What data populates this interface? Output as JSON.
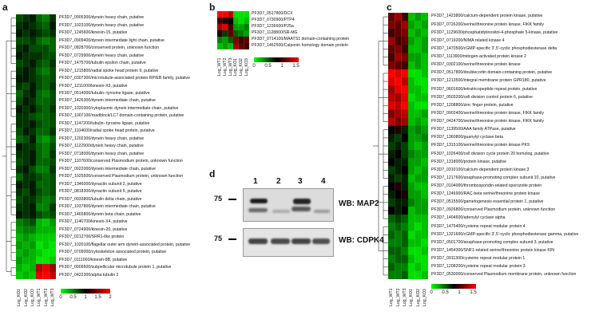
{
  "panels": {
    "a": {
      "letter": "a",
      "columns": [
        "Log_KO1",
        "Log_KO2",
        "Log_KO3",
        "Log_WT1",
        "Log_WT2",
        "Log_WT3"
      ],
      "rows": [
        "PF3D7_0905300/dynein heavy chain, putative",
        "PF3D7_1023100/dynein heavy chain, putative",
        "PF3D7_1245600/kinesin-15, putative",
        "PF3D7_0909400/dynein intermediate light chain, putative",
        "PF3D7_0828700/conserved protein, unknown function",
        "PF3D7_0729900/dynein heavy chain, putative",
        "PF3D7_1475700/tubulin epsilon chain, putative",
        "PF3D7_1215800/radial spoke head protein 9, putative",
        "PF3D7_0307300/microtubule-associated protein RP/EB family, putative",
        "PF3D7_1211000/kinesin-X3, putative",
        "PF3D7_0514000/tubulin--tyrosine ligase, putative",
        "PF3D7_1426300/dynein intermediate chain, putative",
        "PF3D7_1020300/cytoplasmic dynein intermediate chain, putative",
        "PF3D7_1007100/roadblock/LC7 domain-containing protein, putative",
        "PF3D7_1147200/tubulin--tyrosine ligase, putative",
        "PF3D7_1104600/radial spoke head protein, putative",
        "PF3D7_1202300/dynein heavy chain, putative",
        "PF3D7_1122900/dynein heavy chain, putative",
        "PF3D7_0718000/dynein heavy chain, putative",
        "PF3D7_1107600/conserved Plasmodium protein, unknown function",
        "PF3D7_0922000/dynein intermediate chain, putative",
        "PF3D7_1025500/conserved Plasmodium protein, unknown function",
        "PF3D7_1346000/dynactin subunit 2, putative",
        "PF3D7_0818300/dynactin subunit 6, putative",
        "PF3D7_0933800/tubulin delta chain, putative",
        "PF3D7_1037800/dynein intermediate chain, putative",
        "PF3D7_1465800/dynein beta chain, putative",
        "PF3D7_1146700/kinesin-X4, putative",
        "PF3D7_0724900/kinesin-20, putative",
        "PF3D7_0212700/SRR1-like protein",
        "PF3D7_1020100/flagellar outer arm dynein-associated protein, putative",
        "PF3D7_0709000/cytoskeleton associated protein, putative",
        "PF3D7_0111000/kinesin-8B, putative",
        "PF3D7_0909500/subpellicular microtubule protein 1, putative",
        "PF3D7_0422300/alpha tubulin 2"
      ],
      "values": [
        [
          0.7,
          0.8,
          0.9,
          0.6,
          0.5,
          0.8
        ],
        [
          0.8,
          0.9,
          0.8,
          0.7,
          0.6,
          0.9
        ],
        [
          0.9,
          0.8,
          0.9,
          0.8,
          0.7,
          0.8
        ],
        [
          0.7,
          0.7,
          0.8,
          0.6,
          0.5,
          0.6
        ],
        [
          0.8,
          0.9,
          0.7,
          0.7,
          0.7,
          0.6
        ],
        [
          0.9,
          0.8,
          0.8,
          0.8,
          0.7,
          0.7
        ],
        [
          0.7,
          0.8,
          0.9,
          0.7,
          0.6,
          0.8
        ],
        [
          0.8,
          0.9,
          0.8,
          0.6,
          0.5,
          0.7
        ],
        [
          0.9,
          0.9,
          0.8,
          0.7,
          0.6,
          0.7
        ],
        [
          0.8,
          0.7,
          0.9,
          0.7,
          0.6,
          0.8
        ],
        [
          0.6,
          0.8,
          0.9,
          0.6,
          0.5,
          0.7
        ],
        [
          0.7,
          0.9,
          0.8,
          0.6,
          0.6,
          0.7
        ],
        [
          0.9,
          0.8,
          0.9,
          0.7,
          0.6,
          0.8
        ],
        [
          0.8,
          0.8,
          0.7,
          0.6,
          0.6,
          0.7
        ],
        [
          0.8,
          0.8,
          0.9,
          0.7,
          0.6,
          0.7
        ],
        [
          0.7,
          0.9,
          0.8,
          0.6,
          0.6,
          0.8
        ],
        [
          0.6,
          0.7,
          0.9,
          0.5,
          0.4,
          0.6
        ],
        [
          0.9,
          0.8,
          0.8,
          0.6,
          0.5,
          0.7
        ],
        [
          0.8,
          0.8,
          0.9,
          0.6,
          0.5,
          0.8
        ],
        [
          0.7,
          0.8,
          0.9,
          0.6,
          0.6,
          0.7
        ],
        [
          0.8,
          0.9,
          0.7,
          0.5,
          0.5,
          0.8
        ],
        [
          0.6,
          0.8,
          0.8,
          0.7,
          0.6,
          0.7
        ],
        [
          0.9,
          0.8,
          0.9,
          0.6,
          0.6,
          0.7
        ],
        [
          0.8,
          0.7,
          0.9,
          0.7,
          0.6,
          0.7
        ],
        [
          0.7,
          0.8,
          0.8,
          0.6,
          0.5,
          0.6
        ],
        [
          0.8,
          0.8,
          0.9,
          0.5,
          0.5,
          0.8
        ],
        [
          0.9,
          0.8,
          0.9,
          0.7,
          0.6,
          0.7
        ],
        [
          0.5,
          0.6,
          0.7,
          0.3,
          0.2,
          0.4
        ],
        [
          0.4,
          0.5,
          0.5,
          0.3,
          0.3,
          0.3
        ],
        [
          0.3,
          0.4,
          0.3,
          0.2,
          0.2,
          0.2
        ],
        [
          0.4,
          0.3,
          0.4,
          0.1,
          0.2,
          0.1
        ],
        [
          0.3,
          0.4,
          0.3,
          0.2,
          0.1,
          0.1
        ],
        [
          0.4,
          0.3,
          0.3,
          0.1,
          0.1,
          0.2
        ],
        [
          0.3,
          0.2,
          0.3,
          1.7,
          1.9,
          1.6
        ],
        [
          0.2,
          0.3,
          0.2,
          1.9,
          2.0,
          1.8
        ]
      ],
      "legend_ticks": [
        "0",
        "0.5",
        "1",
        "1.5",
        "2"
      ],
      "legend_range": [
        0,
        2
      ]
    },
    "b": {
      "letter": "b",
      "columns": [
        "Log_WT1",
        "Log_WT2",
        "Log_WT3",
        "Log_KO1",
        "Log_KO2",
        "Log_KO3"
      ],
      "rows": [
        "PF3D7_0517800/DCX",
        "PF3D7_0730900/PTP4",
        "PF3D7_1236600/P25a",
        "PF3D7_1128800/SR-MG",
        "PF3D7_0714100/MAATS1 domain-containing protein",
        "PF3D7_1462500/Calponin homology domain protein"
      ],
      "values": [
        [
          1.9,
          1.6,
          1.4,
          0.1,
          0.1,
          0.1
        ],
        [
          1.0,
          0.9,
          0.8,
          0.2,
          0.1,
          0.2
        ],
        [
          1.3,
          1.5,
          1.0,
          0.3,
          0.3,
          0.4
        ],
        [
          0.9,
          0.6,
          1.1,
          0.5,
          0.4,
          0.3
        ],
        [
          0.4,
          0.3,
          0.5,
          1.2,
          1.0,
          1.1
        ],
        [
          0.2,
          0.3,
          0.2,
          1.3,
          1.1,
          1.0
        ]
      ],
      "legend_ticks": [
        "0",
        "0.5",
        "1",
        "1.5"
      ],
      "legend_range": [
        0,
        1.6
      ]
    },
    "c": {
      "letter": "c",
      "columns": [
        "Log_WT1",
        "Log_WT2",
        "Log_WT3",
        "Log_KO1",
        "Log_KO2",
        "Log_KO3"
      ],
      "rows": [
        "PF3D7_1423800/calcium-dependent protein kinase, putative",
        "PF3D7_0726200/serine/threonine protein kinase, FIKK family",
        "PF3D7_1129600/phosphatidylinositol-4-phosphate 5-kinase, putative",
        "PF3D7_0719200/NIMA related kinase 4",
        "PF3D7_1470500/cGMP-specific 3',5'-cyclic phosphodiesterase delta",
        "PF3D7_1113900/mitogen-activated protein kinase 2",
        "PF3D7_0302100/serine/threonine protein kinase",
        "PF3D7_0517800/doublecortin domain-containing protein, putative",
        "PF3D7_1213500/integral membrane protein GPR180, putative",
        "PF3D7_0601600/tetratricopeptide repeat protein, putative",
        "PF3D7_0503200/cell division control protein 6, putative",
        "PF3D7_1208800/zinc finger protein, putative",
        "PF3D7_0902400/serine/threonine protein kinase, FIKK family",
        "PF3D7_0424700/serine/threonine protein kinase, FIKK family",
        "PF3D7_1139500/AAA family ATPase, putative",
        "PF3D7_1360800/guanylyl cyclase beta",
        "PF3D7_1315100/serine/threonine protein kinase PK9",
        "PF3D7_1026400/cell division cycle protein 20 homolog, putative",
        "PF3D7_1318000/protein kinase, putative",
        "PF3D7_0310100/calcium-dependent protein kinase 3",
        "PF3D7_1217600/anaphase-promoting complex subunit 10, putative",
        "PF3D7_0104000/thrombospondin-related sporozoite protein",
        "PF3D7_1246900/RAC-beta serine/threonine protein kinase",
        "PF3D7_0515500/gametogenesis essential protein 1, putative",
        "PF3D7_0926800/conserved Plasmodium protein, unknown function",
        "PF3D7_1404600/adenylyl cyclase alpha",
        "PF3D7_1475400/cysteine repeat modular protein 4",
        "PF3D7_1321600/cGMP-specific 3',5'-cyclic phosphodiesterase gamma, putative",
        "PF3D7_0501700/anaphase-promoting complex subunit 3, putative",
        "PF3D7_1454300/SNF1-related serine/threonine protein kinase KIN",
        "PF3D7_0911300/cysteine repeat modular protein 1",
        "PF3D7_1208200/cysteine repeat modular protein 3",
        "PF3D7_0530000/conserved Plasmodium membrane protein, unknown function"
      ],
      "values": [
        [
          1.1,
          1.3,
          1.0,
          0.2,
          0.3,
          0.2
        ],
        [
          1.2,
          1.1,
          1.3,
          0.3,
          0.2,
          0.3
        ],
        [
          1.0,
          1.1,
          1.2,
          0.2,
          0.3,
          0.2
        ],
        [
          1.3,
          1.0,
          1.1,
          0.3,
          0.2,
          0.3
        ],
        [
          1.1,
          1.2,
          1.0,
          0.2,
          0.2,
          0.3
        ],
        [
          1.0,
          1.3,
          1.2,
          0.3,
          0.3,
          0.2
        ],
        [
          1.2,
          1.1,
          1.0,
          0.2,
          0.3,
          0.2
        ],
        [
          1.6,
          1.5,
          1.7,
          0.1,
          0.1,
          0.2
        ],
        [
          1.5,
          1.6,
          1.4,
          0.2,
          0.1,
          0.1
        ],
        [
          1.3,
          1.5,
          1.6,
          0.2,
          0.2,
          0.1
        ],
        [
          1.4,
          1.3,
          1.5,
          0.1,
          0.2,
          0.2
        ],
        [
          1.5,
          1.4,
          1.6,
          0.2,
          0.1,
          0.1
        ],
        [
          1.2,
          1.3,
          1.4,
          0.2,
          0.2,
          0.3
        ],
        [
          1.4,
          1.2,
          1.3,
          0.2,
          0.3,
          0.2
        ],
        [
          0.8,
          0.9,
          0.7,
          0.3,
          0.4,
          0.3
        ],
        [
          0.7,
          0.6,
          0.8,
          0.3,
          0.3,
          0.4
        ],
        [
          0.6,
          0.7,
          0.6,
          0.3,
          0.2,
          0.3
        ],
        [
          0.7,
          0.8,
          0.6,
          0.4,
          0.3,
          0.3
        ],
        [
          0.8,
          0.7,
          0.7,
          0.3,
          0.3,
          0.2
        ],
        [
          0.6,
          0.7,
          0.8,
          0.3,
          0.2,
          0.3
        ],
        [
          0.7,
          0.6,
          0.7,
          0.2,
          0.3,
          0.3
        ],
        [
          0.8,
          0.9,
          0.7,
          0.3,
          0.2,
          0.2
        ],
        [
          0.7,
          0.8,
          0.9,
          0.3,
          0.3,
          0.2
        ],
        [
          0.6,
          0.7,
          0.7,
          0.4,
          0.3,
          0.3
        ],
        [
          0.8,
          0.7,
          0.8,
          0.2,
          0.3,
          0.3
        ],
        [
          0.5,
          0.6,
          0.5,
          0.2,
          0.2,
          0.2
        ],
        [
          0.4,
          0.5,
          0.4,
          0.2,
          0.1,
          0.2
        ],
        [
          0.5,
          0.4,
          0.5,
          0.1,
          0.2,
          0.2
        ],
        [
          0.4,
          0.4,
          0.5,
          0.2,
          0.2,
          0.1
        ],
        [
          0.5,
          0.5,
          0.4,
          0.1,
          0.1,
          0.2
        ],
        [
          0.4,
          0.5,
          0.5,
          0.2,
          0.1,
          0.1
        ],
        [
          0.5,
          0.4,
          0.4,
          0.1,
          0.2,
          0.1
        ],
        [
          0.4,
          0.4,
          0.5,
          0.1,
          0.1,
          0.2
        ]
      ],
      "legend_ticks": [
        "0",
        "0.5",
        "1",
        "1.5"
      ],
      "legend_range": [
        0,
        1.6
      ]
    },
    "d": {
      "letter": "d",
      "lanes": [
        "1",
        "2",
        "3",
        "4"
      ],
      "mw_markers": [
        "75",
        "75"
      ],
      "blots": [
        "WB: MAP2",
        "WB: CDPK4"
      ]
    }
  },
  "colors": {
    "low": "#00ff00",
    "mid": "#000000",
    "high": "#ff0000"
  }
}
